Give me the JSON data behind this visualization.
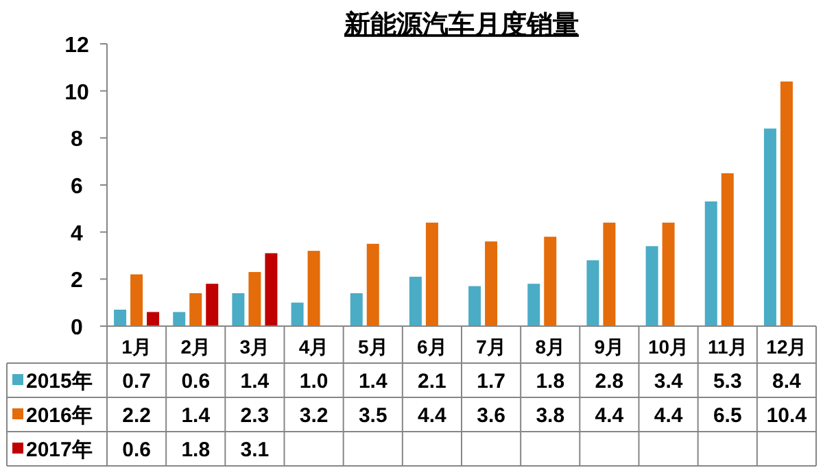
{
  "chart_data": {
    "type": "bar",
    "title": "新能源汽车月度销量",
    "categories": [
      "1月",
      "2月",
      "3月",
      "4月",
      "5月",
      "6月",
      "7月",
      "8月",
      "9月",
      "10月",
      "11月",
      "12月"
    ],
    "series": [
      {
        "name": "2015年",
        "color": "#4bacc6",
        "values": [
          0.7,
          0.6,
          1.4,
          1.0,
          1.4,
          2.1,
          1.7,
          1.8,
          2.8,
          3.4,
          5.3,
          8.4
        ],
        "value_labels": [
          "0.7",
          "0.6",
          "1.4",
          "1.0",
          "1.4",
          "2.1",
          "1.7",
          "1.8",
          "2.8",
          "3.4",
          "5.3",
          "8.4"
        ]
      },
      {
        "name": "2016年",
        "color": "#e46c0a",
        "values": [
          2.2,
          1.4,
          2.3,
          3.2,
          3.5,
          4.4,
          3.6,
          3.8,
          4.4,
          4.4,
          6.5,
          10.4
        ],
        "value_labels": [
          "2.2",
          "1.4",
          "2.3",
          "3.2",
          "3.5",
          "4.4",
          "3.6",
          "3.8",
          "4.4",
          "4.4",
          "6.5",
          "10.4"
        ]
      },
      {
        "name": "2017年",
        "color": "#c00000",
        "values": [
          0.6,
          1.8,
          3.1,
          null,
          null,
          null,
          null,
          null,
          null,
          null,
          null,
          null
        ],
        "value_labels": [
          "0.6",
          "1.8",
          "3.1",
          null,
          null,
          null,
          null,
          null,
          null,
          null,
          null,
          null
        ]
      }
    ],
    "ylim": [
      0,
      12
    ],
    "yticks": [
      0,
      2,
      4,
      6,
      8,
      10,
      12
    ],
    "grid": false,
    "legend": "bottom"
  }
}
